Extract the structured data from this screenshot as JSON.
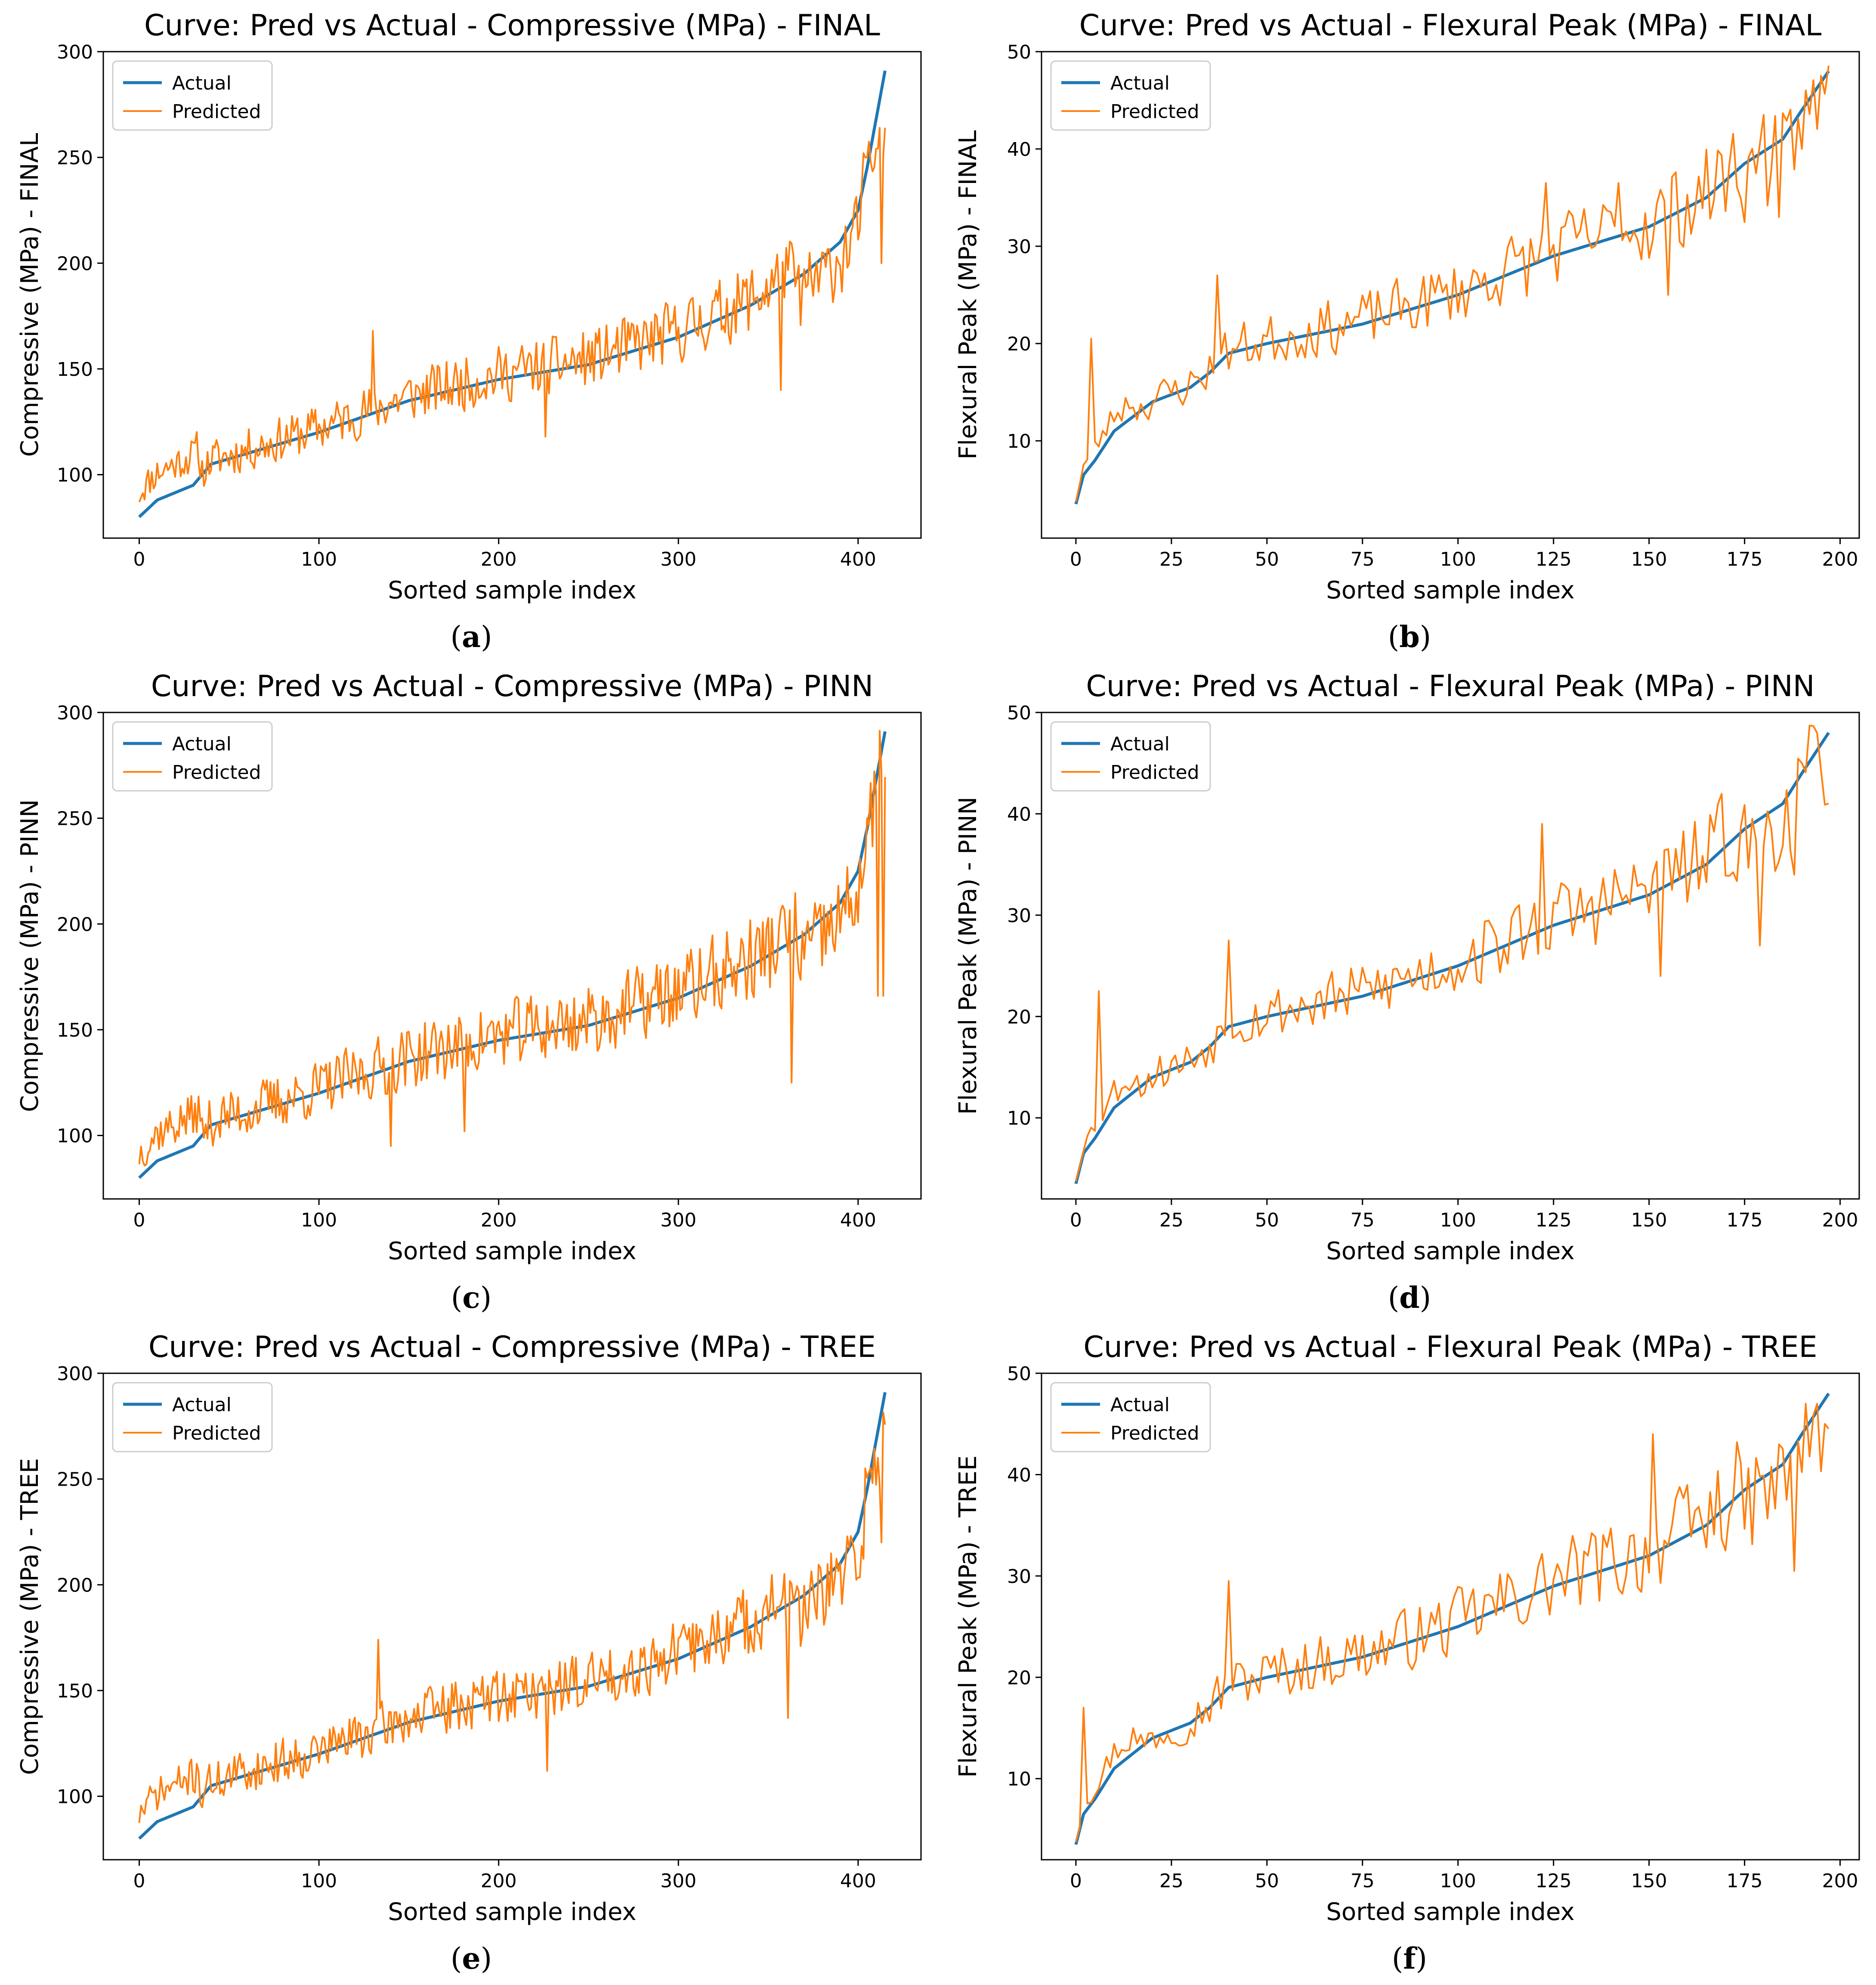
{
  "colors": {
    "actual": "#1f77b4",
    "predicted": "#ff7f0e"
  },
  "chart_data": [
    {
      "type": "line",
      "panel": "a",
      "title": "Curve: Pred vs Actual - Compressive (MPa) - FINAL",
      "xlabel": "Sorted sample index",
      "ylabel": "Compressive (MPa) - FINAL",
      "xlim": [
        -20,
        435
      ],
      "ylim": [
        70,
        300
      ],
      "xticks": [
        0,
        100,
        200,
        300,
        400
      ],
      "yticks": [
        100,
        150,
        200,
        250,
        300
      ],
      "n": 415,
      "legend": [
        "Actual",
        "Predicted"
      ],
      "actual_anchors": [
        [
          0,
          80
        ],
        [
          5,
          84
        ],
        [
          10,
          88
        ],
        [
          30,
          95
        ],
        [
          40,
          105
        ],
        [
          60,
          110
        ],
        [
          100,
          120
        ],
        [
          150,
          135
        ],
        [
          200,
          145
        ],
        [
          250,
          152
        ],
        [
          300,
          165
        ],
        [
          340,
          180
        ],
        [
          370,
          195
        ],
        [
          390,
          210
        ],
        [
          400,
          225
        ],
        [
          405,
          245
        ],
        [
          410,
          268
        ],
        [
          415,
          291
        ]
      ],
      "seed": 11,
      "noise": [
        0.09,
        0.07
      ],
      "spikes": [
        [
          130,
          168
        ],
        [
          226,
          118
        ],
        [
          357,
          140
        ],
        [
          403,
          252
        ],
        [
          410,
          254
        ],
        [
          412,
          264
        ],
        [
          413,
          200
        ]
      ]
    },
    {
      "type": "line",
      "panel": "b",
      "title": "Curve: Pred vs Actual - Flexural Peak (MPa) - FINAL",
      "xlabel": "Sorted sample index",
      "ylabel": "Flexural Peak (MPa) - FINAL",
      "xlim": [
        -9,
        205
      ],
      "ylim": [
        0,
        50
      ],
      "xticks": [
        0,
        25,
        50,
        75,
        100,
        125,
        150,
        175,
        200
      ],
      "yticks": [
        10,
        20,
        30,
        40,
        50
      ],
      "n": 197,
      "legend": [
        "Actual",
        "Predicted"
      ],
      "actual_anchors": [
        [
          0,
          3.5
        ],
        [
          2,
          6.5
        ],
        [
          5,
          8
        ],
        [
          10,
          11
        ],
        [
          15,
          12.5
        ],
        [
          20,
          14
        ],
        [
          30,
          15.5
        ],
        [
          35,
          17
        ],
        [
          40,
          19
        ],
        [
          50,
          20
        ],
        [
          75,
          22
        ],
        [
          100,
          25
        ],
        [
          125,
          29
        ],
        [
          150,
          32
        ],
        [
          165,
          35
        ],
        [
          175,
          38.5
        ],
        [
          185,
          41
        ],
        [
          190,
          44
        ],
        [
          197,
          48
        ]
      ],
      "seed": 23,
      "noise": [
        0.13,
        0.1
      ],
      "spikes": [
        [
          4,
          20.5
        ],
        [
          37,
          27
        ],
        [
          123,
          36.5
        ],
        [
          142,
          36.5
        ],
        [
          155,
          25
        ],
        [
          180,
          43.5
        ],
        [
          184,
          33
        ],
        [
          190,
          40
        ]
      ]
    },
    {
      "type": "line",
      "panel": "c",
      "title": "Curve: Pred vs Actual - Compressive (MPa) - PINN",
      "xlabel": "Sorted sample index",
      "ylabel": "Compressive (MPa) - PINN",
      "xlim": [
        -20,
        435
      ],
      "ylim": [
        70,
        300
      ],
      "xticks": [
        0,
        100,
        200,
        300,
        400
      ],
      "yticks": [
        100,
        150,
        200,
        250,
        300
      ],
      "n": 415,
      "legend": [
        "Actual",
        "Predicted"
      ],
      "actual_anchors": [
        [
          0,
          80
        ],
        [
          5,
          84
        ],
        [
          10,
          88
        ],
        [
          30,
          95
        ],
        [
          40,
          105
        ],
        [
          60,
          110
        ],
        [
          100,
          120
        ],
        [
          150,
          135
        ],
        [
          200,
          145
        ],
        [
          250,
          152
        ],
        [
          300,
          165
        ],
        [
          340,
          180
        ],
        [
          370,
          195
        ],
        [
          390,
          210
        ],
        [
          400,
          225
        ],
        [
          405,
          245
        ],
        [
          410,
          268
        ],
        [
          415,
          291
        ]
      ],
      "seed": 37,
      "noise": [
        0.11,
        0.08
      ],
      "spikes": [
        [
          140,
          95
        ],
        [
          181,
          102
        ],
        [
          363,
          125
        ],
        [
          405,
          250
        ],
        [
          411,
          166
        ],
        [
          413,
          272
        ],
        [
          414,
          166
        ]
      ]
    },
    {
      "type": "line",
      "panel": "d",
      "title": "Curve: Pred vs Actual - Flexural Peak (MPa) - PINN",
      "xlabel": "Sorted sample index",
      "ylabel": "Flexural Peak (MPa) - PINN",
      "xlim": [
        -9,
        205
      ],
      "ylim": [
        2,
        50
      ],
      "xticks": [
        0,
        25,
        50,
        75,
        100,
        125,
        150,
        175,
        200
      ],
      "yticks": [
        10,
        20,
        30,
        40,
        50
      ],
      "n": 197,
      "legend": [
        "Actual",
        "Predicted"
      ],
      "actual_anchors": [
        [
          0,
          3.5
        ],
        [
          2,
          6.5
        ],
        [
          5,
          8
        ],
        [
          10,
          11
        ],
        [
          15,
          12.5
        ],
        [
          20,
          14
        ],
        [
          30,
          15.5
        ],
        [
          35,
          17
        ],
        [
          40,
          19
        ],
        [
          50,
          20
        ],
        [
          75,
          22
        ],
        [
          100,
          25
        ],
        [
          125,
          29
        ],
        [
          150,
          32
        ],
        [
          165,
          35
        ],
        [
          175,
          38.5
        ],
        [
          185,
          41
        ],
        [
          190,
          44
        ],
        [
          197,
          48
        ]
      ],
      "seed": 53,
      "noise": [
        0.13,
        0.1
      ],
      "spikes": [
        [
          6,
          22.5
        ],
        [
          40,
          27.5
        ],
        [
          122,
          39
        ],
        [
          153,
          24
        ],
        [
          179,
          27
        ],
        [
          188,
          34
        ],
        [
          190,
          45
        ]
      ]
    },
    {
      "type": "line",
      "panel": "e",
      "title": "Curve: Pred vs Actual - Compressive (MPa) - TREE",
      "xlabel": "Sorted sample index",
      "ylabel": "Compressive (MPa) - TREE",
      "xlim": [
        -20,
        435
      ],
      "ylim": [
        70,
        300
      ],
      "xticks": [
        0,
        100,
        200,
        300,
        400
      ],
      "yticks": [
        100,
        150,
        200,
        250,
        300
      ],
      "n": 415,
      "legend": [
        "Actual",
        "Predicted"
      ],
      "actual_anchors": [
        [
          0,
          80
        ],
        [
          5,
          84
        ],
        [
          10,
          88
        ],
        [
          30,
          95
        ],
        [
          40,
          105
        ],
        [
          60,
          110
        ],
        [
          100,
          120
        ],
        [
          150,
          135
        ],
        [
          200,
          145
        ],
        [
          250,
          152
        ],
        [
          300,
          165
        ],
        [
          340,
          180
        ],
        [
          370,
          195
        ],
        [
          390,
          210
        ],
        [
          400,
          225
        ],
        [
          405,
          245
        ],
        [
          410,
          268
        ],
        [
          415,
          291
        ]
      ],
      "seed": 71,
      "noise": [
        0.09,
        0.07
      ],
      "spikes": [
        [
          133,
          174
        ],
        [
          227,
          112
        ],
        [
          361,
          137
        ],
        [
          404,
          255
        ],
        [
          411,
          260
        ],
        [
          413,
          220
        ]
      ]
    },
    {
      "type": "line",
      "panel": "f",
      "title": "Curve: Pred vs Actual - Flexural Peak (MPa) - TREE",
      "xlabel": "Sorted sample index",
      "ylabel": "Flexural Peak (MPa) - TREE",
      "xlim": [
        -9,
        205
      ],
      "ylim": [
        2,
        50
      ],
      "xticks": [
        0,
        25,
        50,
        75,
        100,
        125,
        150,
        175,
        200
      ],
      "yticks": [
        10,
        20,
        30,
        40,
        50
      ],
      "n": 197,
      "legend": [
        "Actual",
        "Predicted"
      ],
      "actual_anchors": [
        [
          0,
          3.5
        ],
        [
          2,
          6.5
        ],
        [
          5,
          8
        ],
        [
          10,
          11
        ],
        [
          15,
          12.5
        ],
        [
          20,
          14
        ],
        [
          30,
          15.5
        ],
        [
          35,
          17
        ],
        [
          40,
          19
        ],
        [
          50,
          20
        ],
        [
          75,
          22
        ],
        [
          100,
          25
        ],
        [
          125,
          29
        ],
        [
          150,
          32
        ],
        [
          165,
          35
        ],
        [
          175,
          38.5
        ],
        [
          185,
          41
        ],
        [
          190,
          44
        ],
        [
          197,
          48
        ]
      ],
      "seed": 97,
      "noise": [
        0.13,
        0.1
      ],
      "spikes": [
        [
          2,
          17
        ],
        [
          40,
          29.5
        ],
        [
          151,
          44
        ],
        [
          188,
          30.5
        ],
        [
          196,
          45
        ]
      ]
    }
  ],
  "captions": [
    "a",
    "b",
    "c",
    "d",
    "e",
    "f"
  ]
}
